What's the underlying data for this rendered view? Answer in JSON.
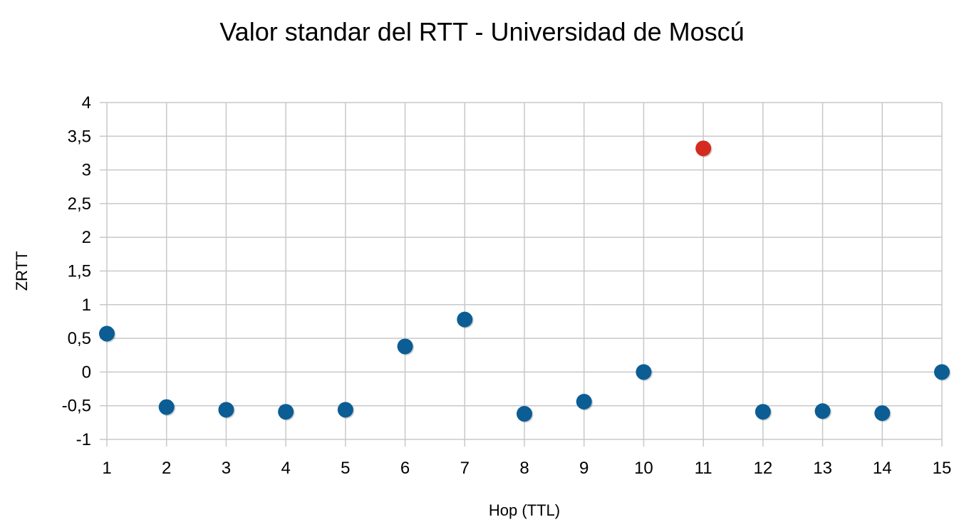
{
  "chart_data": {
    "type": "scatter",
    "title": "Valor standar del RTT - Universidad de Moscú",
    "xlabel": "Hop (TTL)",
    "ylabel": "ZRTT",
    "xlim": [
      1,
      15
    ],
    "ylim": [
      -1,
      4
    ],
    "x_ticks": [
      "1",
      "2",
      "3",
      "4",
      "5",
      "6",
      "7",
      "8",
      "9",
      "10",
      "11",
      "12",
      "13",
      "14",
      "15"
    ],
    "y_ticks": [
      "-1",
      "-0,5",
      "0",
      "0,5",
      "1",
      "1,5",
      "2",
      "2,5",
      "3",
      "3,5",
      "4"
    ],
    "grid": true,
    "legend": "none",
    "colors": {
      "normal": "#0b5d94",
      "highlight": "#d42a20",
      "grid": "#c8c8c8"
    },
    "points": [
      {
        "x": 1,
        "y": 0.57,
        "highlight": false
      },
      {
        "x": 2,
        "y": -0.52,
        "highlight": false
      },
      {
        "x": 3,
        "y": -0.56,
        "highlight": false
      },
      {
        "x": 4,
        "y": -0.59,
        "highlight": false
      },
      {
        "x": 5,
        "y": -0.56,
        "highlight": false
      },
      {
        "x": 6,
        "y": 0.38,
        "highlight": false
      },
      {
        "x": 7,
        "y": 0.78,
        "highlight": false
      },
      {
        "x": 8,
        "y": -0.62,
        "highlight": false
      },
      {
        "x": 9,
        "y": -0.44,
        "highlight": false
      },
      {
        "x": 10,
        "y": 0.0,
        "highlight": false
      },
      {
        "x": 11,
        "y": 3.32,
        "highlight": true
      },
      {
        "x": 12,
        "y": -0.59,
        "highlight": false
      },
      {
        "x": 13,
        "y": -0.58,
        "highlight": false
      },
      {
        "x": 14,
        "y": -0.61,
        "highlight": false
      },
      {
        "x": 15,
        "y": 0.0,
        "highlight": false
      }
    ]
  }
}
